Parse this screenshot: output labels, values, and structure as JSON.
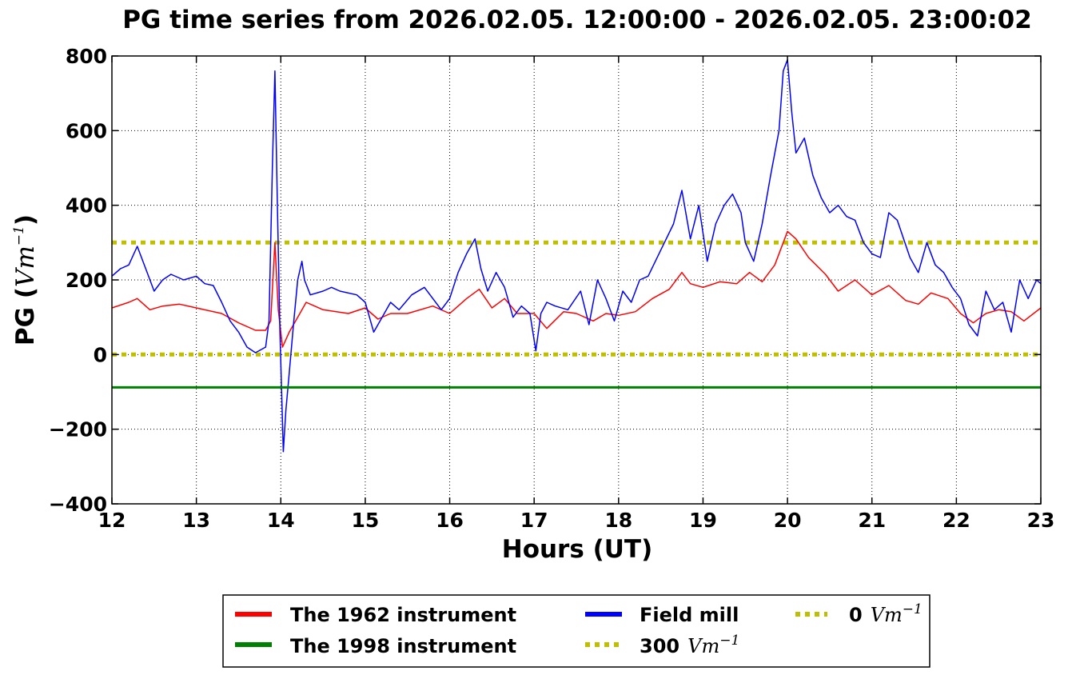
{
  "chart_data": {
    "type": "line",
    "title": "PG time series from 2026.02.05. 12:00:00 - 2026.02.05. 23:00:02",
    "xlabel": "Hours (UT)",
    "ylabel": {
      "prefix": "PG (",
      "unit": "Vm",
      "exp": "−1",
      "suffix": ")"
    },
    "xlim": [
      12,
      23
    ],
    "ylim": [
      -400,
      800
    ],
    "xticks": [
      "12",
      "13",
      "14",
      "15",
      "16",
      "17",
      "18",
      "19",
      "20",
      "21",
      "22",
      "23"
    ],
    "yticks": [
      "800",
      "600",
      "400",
      "200",
      "0",
      "−200",
      "−400"
    ],
    "grid": true,
    "legend_position": "below",
    "series": [
      {
        "name": "The 1962 instrument",
        "color": "#ff0000",
        "style": "solid",
        "x": [
          12.0,
          12.2,
          12.3,
          12.45,
          12.6,
          12.8,
          13.0,
          13.3,
          13.5,
          13.7,
          13.82,
          13.88,
          13.93,
          13.97,
          14.02,
          14.1,
          14.2,
          14.3,
          14.5,
          14.8,
          15.0,
          15.15,
          15.3,
          15.5,
          15.8,
          16.0,
          16.2,
          16.35,
          16.5,
          16.65,
          16.8,
          17.0,
          17.15,
          17.35,
          17.5,
          17.7,
          17.85,
          18.0,
          18.2,
          18.4,
          18.6,
          18.75,
          18.85,
          19.0,
          19.2,
          19.4,
          19.55,
          19.7,
          19.85,
          20.0,
          20.1,
          20.25,
          20.45,
          20.6,
          20.8,
          21.0,
          21.2,
          21.4,
          21.55,
          21.7,
          21.9,
          22.05,
          22.2,
          22.35,
          22.5,
          22.65,
          22.8,
          23.0
        ],
        "y": [
          125,
          140,
          150,
          120,
          130,
          135,
          125,
          110,
          85,
          65,
          65,
          90,
          300,
          120,
          20,
          60,
          100,
          140,
          120,
          110,
          125,
          95,
          110,
          110,
          130,
          110,
          150,
          175,
          125,
          150,
          110,
          110,
          70,
          115,
          110,
          90,
          110,
          105,
          115,
          150,
          175,
          220,
          190,
          180,
          195,
          190,
          220,
          195,
          240,
          330,
          310,
          260,
          215,
          170,
          200,
          160,
          185,
          145,
          135,
          165,
          150,
          110,
          85,
          110,
          120,
          115,
          90,
          125
        ]
      },
      {
        "name": "The 1998 instrument",
        "color": "#008000",
        "style": "solid",
        "x": [
          12,
          23
        ],
        "y": [
          -88,
          -88
        ]
      },
      {
        "name": "Field mill",
        "color": "#0000ff",
        "style": "solid",
        "x": [
          12.0,
          12.1,
          12.2,
          12.3,
          12.4,
          12.5,
          12.6,
          12.7,
          12.85,
          13.0,
          13.1,
          13.2,
          13.3,
          13.4,
          13.5,
          13.6,
          13.7,
          13.82,
          13.86,
          13.9,
          13.93,
          13.96,
          13.99,
          14.03,
          14.06,
          14.1,
          14.15,
          14.2,
          14.25,
          14.28,
          14.35,
          14.5,
          14.6,
          14.7,
          14.9,
          15.0,
          15.1,
          15.2,
          15.3,
          15.4,
          15.55,
          15.7,
          15.9,
          16.0,
          16.1,
          16.2,
          16.3,
          16.37,
          16.45,
          16.55,
          16.65,
          16.75,
          16.85,
          16.95,
          17.02,
          17.08,
          17.15,
          17.25,
          17.4,
          17.55,
          17.65,
          17.75,
          17.85,
          17.95,
          18.05,
          18.15,
          18.25,
          18.35,
          18.5,
          18.65,
          18.75,
          18.85,
          18.95,
          19.05,
          19.15,
          19.25,
          19.35,
          19.45,
          19.5,
          19.6,
          19.7,
          19.8,
          19.9,
          19.95,
          20.0,
          20.05,
          20.1,
          20.2,
          20.3,
          20.4,
          20.5,
          20.6,
          20.7,
          20.8,
          20.9,
          21.0,
          21.1,
          21.2,
          21.3,
          21.45,
          21.55,
          21.65,
          21.75,
          21.85,
          21.95,
          22.05,
          22.15,
          22.25,
          22.35,
          22.45,
          22.55,
          22.65,
          22.75,
          22.85,
          22.95,
          23.0
        ],
        "y": [
          210,
          230,
          240,
          290,
          230,
          170,
          200,
          215,
          200,
          210,
          190,
          185,
          140,
          90,
          60,
          20,
          5,
          20,
          90,
          500,
          760,
          400,
          60,
          -260,
          -150,
          -50,
          80,
          200,
          250,
          200,
          160,
          170,
          180,
          170,
          160,
          140,
          60,
          100,
          140,
          120,
          160,
          180,
          120,
          150,
          220,
          270,
          310,
          230,
          170,
          220,
          180,
          100,
          130,
          110,
          10,
          110,
          140,
          130,
          120,
          170,
          80,
          200,
          150,
          90,
          170,
          140,
          200,
          210,
          280,
          350,
          440,
          310,
          400,
          250,
          350,
          400,
          430,
          380,
          300,
          250,
          350,
          480,
          600,
          760,
          790,
          650,
          540,
          580,
          480,
          420,
          380,
          400,
          370,
          360,
          300,
          270,
          260,
          380,
          360,
          260,
          220,
          300,
          240,
          220,
          180,
          150,
          80,
          50,
          170,
          120,
          140,
          60,
          200,
          150,
          200,
          190
        ]
      },
      {
        "name": "300",
        "unit": "Vm",
        "exp": "−1",
        "color": "#bfbf00",
        "style": "dotted",
        "x": [
          12,
          23
        ],
        "y": [
          300,
          300
        ]
      },
      {
        "name": "0",
        "unit": "Vm",
        "exp": "−1",
        "color": "#bfbf00",
        "style": "dotted",
        "x": [
          12,
          23
        ],
        "y": [
          0,
          0
        ]
      }
    ]
  }
}
